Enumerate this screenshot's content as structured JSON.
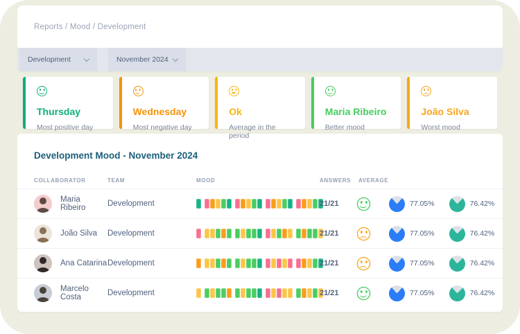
{
  "breadcrumb": "Reports / Mood / Development",
  "filters": [
    {
      "label": "Development"
    },
    {
      "label": "November 2024"
    }
  ],
  "stats": [
    {
      "title": "Thursday",
      "subtitle": "Most positive day",
      "color": "#0fae7d",
      "face": "happy"
    },
    {
      "title": "Wednesday",
      "subtitle": "Most negative day",
      "color": "#f6930c",
      "face": "sad"
    },
    {
      "title": "Ok",
      "subtitle": "Average in the period",
      "color": "#f9b511",
      "face": "neutral"
    },
    {
      "title": "Maria Ribeiro",
      "subtitle": "Better mood",
      "color": "#44cd60",
      "face": "happy"
    },
    {
      "title": "João Silva",
      "subtitle": "Worst mood",
      "color": "#f8a51d",
      "face": "sad"
    }
  ],
  "table": {
    "title": "Development Mood - November 2024",
    "headers": [
      "COLLABORATOR",
      "TEAM",
      "MOOD",
      "ANSWERS",
      "AVERAGE"
    ],
    "mood_palette": {
      "pink": "#f7708f",
      "orange": "#fa9d1c",
      "amber": "#fcc549",
      "green": "#4ccc63",
      "teal": "#16b385"
    },
    "pie_colors": {
      "first": "#2b7cf7",
      "second": "#2cb59a"
    },
    "rows": [
      {
        "name": "Maria Ribeiro",
        "team": "Development",
        "answers": "21/21",
        "face": "happy",
        "face_color": "#44cd60",
        "avatar_bg": "#f2cdcb",
        "avatar_fg": "#5d4a45",
        "mood_weeks": [
          [
            "teal"
          ],
          [
            "pink",
            "orange",
            "amber",
            "green",
            "teal"
          ],
          [
            "pink",
            "orange",
            "amber",
            "green",
            "teal"
          ],
          [
            "pink",
            "orange",
            "amber",
            "green",
            "teal"
          ],
          [
            "pink",
            "orange",
            "amber",
            "green",
            "teal"
          ]
        ],
        "pies": [
          {
            "value": "77.05%",
            "pct": 22.95
          },
          {
            "value": "76.42%",
            "pct": 23.58
          }
        ]
      },
      {
        "name": "João Silva",
        "team": "Development",
        "answers": "21/21",
        "face": "sad",
        "face_color": "#f8a51d",
        "avatar_bg": "#eae4da",
        "avatar_fg": "#8a6f55",
        "mood_weeks": [
          [
            "pink"
          ],
          [
            "amber",
            "amber",
            "green",
            "orange",
            "green"
          ],
          [
            "green",
            "amber",
            "green",
            "green",
            "teal"
          ],
          [
            "pink",
            "amber",
            "green",
            "orange",
            "amber"
          ],
          [
            "green",
            "orange",
            "green",
            "green",
            "amber"
          ]
        ],
        "pies": [
          {
            "value": "77.05%",
            "pct": 22.95
          },
          {
            "value": "76.42%",
            "pct": 23.58
          }
        ]
      },
      {
        "name": "Ana Catarina",
        "team": "Development",
        "answers": "21/21",
        "face": "sad",
        "face_color": "#f8a51d",
        "avatar_bg": "#cfc4bd",
        "avatar_fg": "#2e2a28",
        "mood_weeks": [
          [
            "orange"
          ],
          [
            "amber",
            "amber",
            "green",
            "orange",
            "green"
          ],
          [
            "green",
            "amber",
            "green",
            "green",
            "teal"
          ],
          [
            "pink",
            "amber",
            "pink",
            "amber",
            "pink"
          ],
          [
            "pink",
            "orange",
            "amber",
            "green",
            "teal"
          ]
        ],
        "pies": [
          {
            "value": "77.05%",
            "pct": 22.95
          },
          {
            "value": "76.42%",
            "pct": 23.58
          }
        ]
      },
      {
        "name": "Marcelo Costa",
        "team": "Development",
        "answers": "21/21",
        "face": "happy",
        "face_color": "#44cd60",
        "avatar_bg": "#c8cdd5",
        "avatar_fg": "#4a423c",
        "mood_weeks": [
          [
            "amber"
          ],
          [
            "green",
            "amber",
            "green",
            "green",
            "orange"
          ],
          [
            "green",
            "amber",
            "green",
            "green",
            "teal"
          ],
          [
            "pink",
            "amber",
            "pink",
            "amber",
            "amber"
          ],
          [
            "green",
            "orange",
            "amber",
            "green",
            "amber"
          ]
        ],
        "pies": [
          {
            "value": "77.05%",
            "pct": 22.95
          },
          {
            "value": "76.42%",
            "pct": 23.58
          }
        ]
      }
    ]
  }
}
